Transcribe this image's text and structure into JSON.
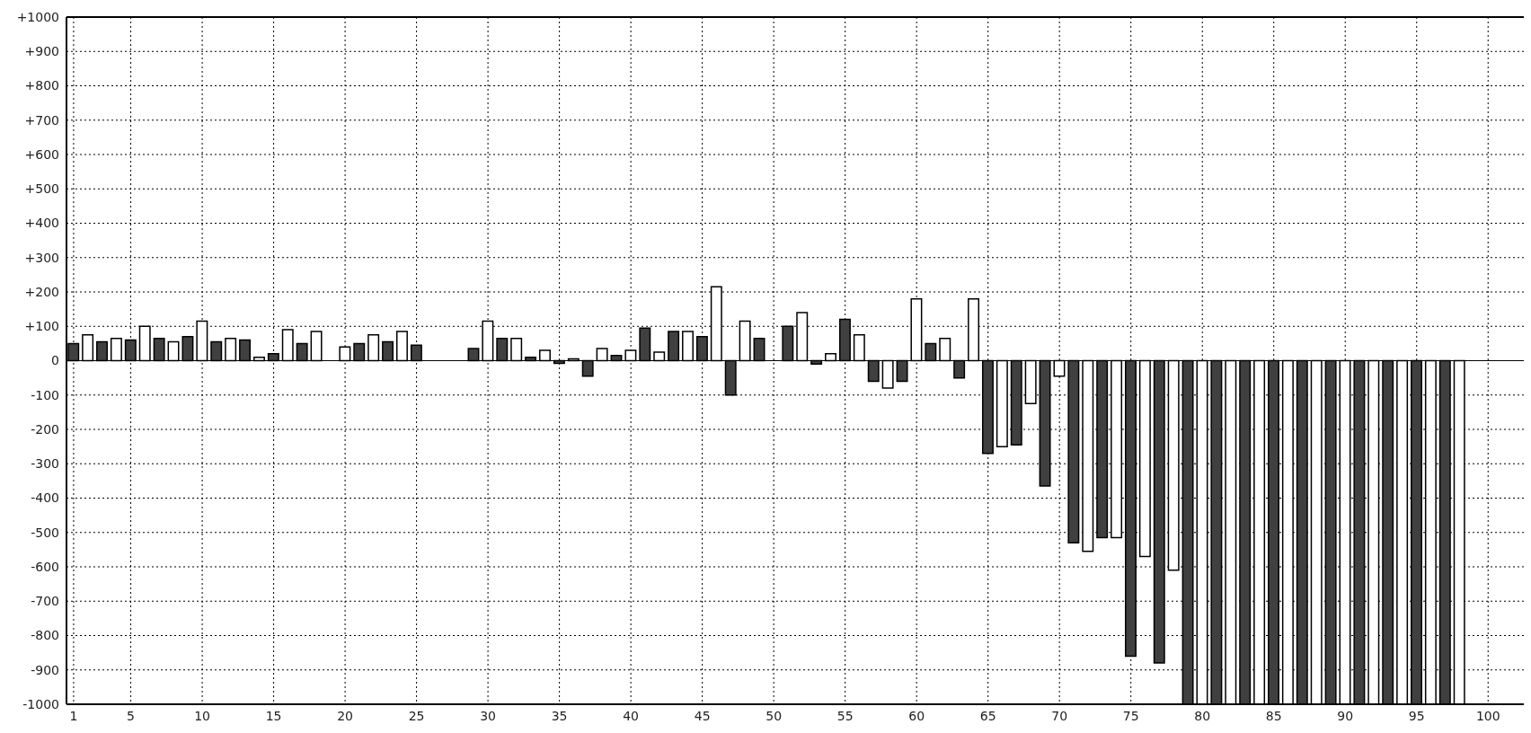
{
  "chart_data": {
    "type": "bar",
    "series": [
      {
        "color": "#404040",
        "x": [
          1,
          3,
          5,
          7,
          9,
          11,
          13,
          15,
          17,
          19,
          21,
          23,
          25,
          27,
          29,
          31,
          33,
          35,
          37,
          39,
          41,
          43,
          45,
          47,
          49,
          51,
          53,
          55,
          57,
          59,
          61,
          63,
          65,
          67,
          69,
          71,
          73,
          75,
          77,
          79,
          81,
          83,
          85,
          87,
          89,
          91,
          93,
          95,
          97
        ],
        "values": [
          50,
          55,
          60,
          65,
          70,
          55,
          60,
          20,
          50,
          0,
          50,
          55,
          45,
          0,
          35,
          65,
          10,
          -8,
          -45,
          15,
          95,
          85,
          70,
          -100,
          65,
          100,
          -10,
          120,
          -60,
          -60,
          50,
          -50,
          -270,
          -245,
          -365,
          -530,
          -515,
          -860,
          -880,
          -1000,
          -1000,
          -1000,
          -1000,
          -1000,
          -1000,
          -1000,
          -1000,
          -1000,
          -1000
        ]
      },
      {
        "color": "#ffffff",
        "x": [
          2,
          4,
          6,
          8,
          10,
          12,
          14,
          16,
          18,
          20,
          22,
          24,
          26,
          28,
          30,
          32,
          34,
          36,
          38,
          40,
          42,
          44,
          46,
          48,
          50,
          52,
          54,
          56,
          58,
          60,
          62,
          64,
          66,
          68,
          70,
          72,
          74,
          76,
          78,
          80,
          82,
          84,
          86,
          88,
          90,
          92,
          94,
          96,
          98
        ],
        "values": [
          75,
          65,
          100,
          55,
          115,
          65,
          10,
          90,
          85,
          40,
          75,
          85,
          0,
          0,
          115,
          65,
          30,
          5,
          35,
          30,
          25,
          85,
          215,
          115,
          0,
          140,
          20,
          75,
          -80,
          180,
          65,
          180,
          -250,
          -125,
          -45,
          -555,
          -515,
          -570,
          -610,
          -1000,
          -1000,
          -1000,
          -1000,
          -1000,
          -1000,
          -1000,
          -1000,
          -1000,
          -1000
        ]
      }
    ],
    "xlim": [
      0.5,
      102.5
    ],
    "xticks": [
      1,
      5,
      10,
      15,
      20,
      25,
      30,
      35,
      40,
      45,
      50,
      55,
      60,
      65,
      70,
      75,
      80,
      85,
      90,
      95,
      100
    ],
    "ylim": [
      -1000,
      1000
    ],
    "yticks": [
      -1000,
      -900,
      -800,
      -700,
      -600,
      -500,
      -400,
      -300,
      -200,
      -100,
      0,
      {
        "value": 100,
        "label": "+100"
      },
      {
        "value": 200,
        "label": "+200"
      },
      {
        "value": 300,
        "label": "+300"
      },
      {
        "value": 400,
        "label": "+400"
      },
      {
        "value": 500,
        "label": "+500"
      },
      {
        "value": 600,
        "label": "+600"
      },
      {
        "value": 700,
        "label": "+700"
      },
      {
        "value": 800,
        "label": "+800"
      },
      {
        "value": 900,
        "label": "+900"
      },
      {
        "value": 1000,
        "label": "+1000"
      }
    ],
    "ref_lines": [
      {
        "axis": "y",
        "value": 0,
        "color": "#000000"
      }
    ],
    "grid": true
  }
}
